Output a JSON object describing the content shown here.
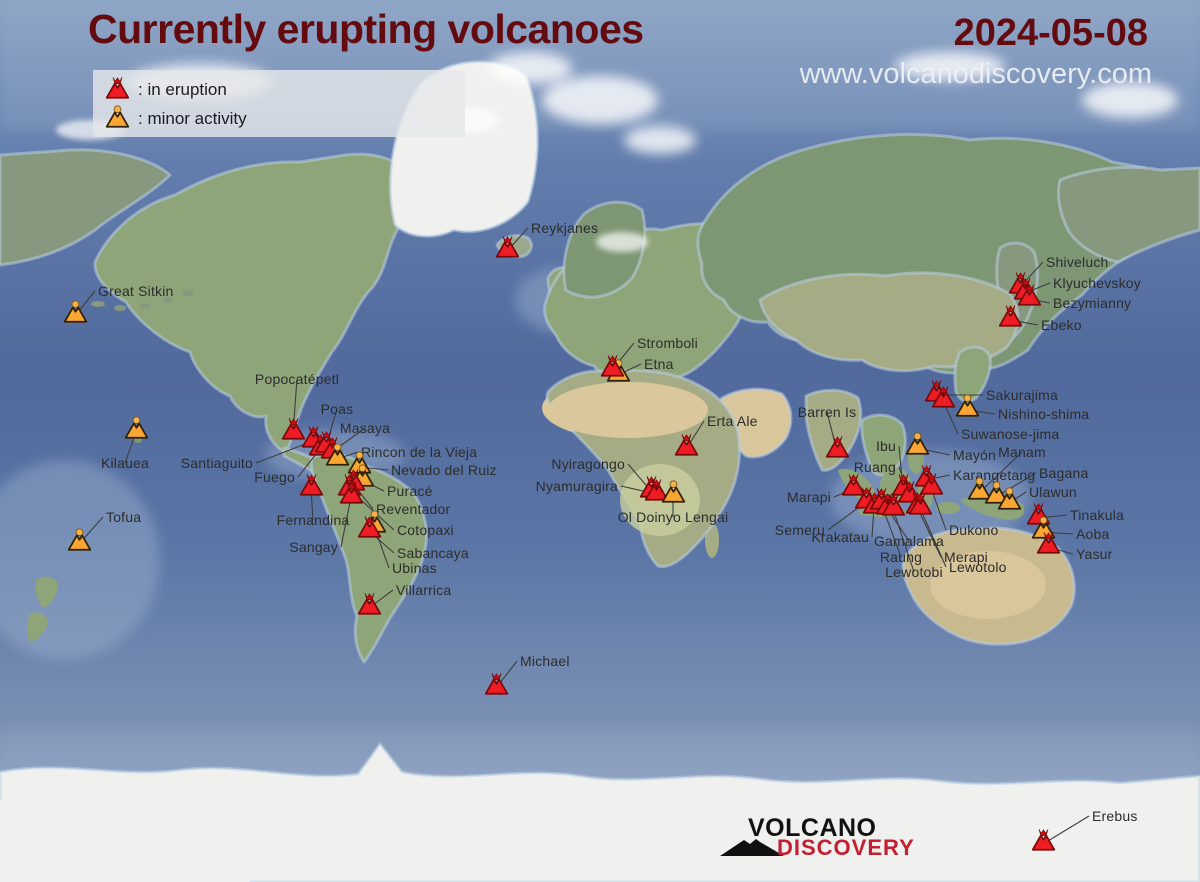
{
  "header": {
    "title": "Currently erupting volcanoes",
    "date": "2024-05-08",
    "website": "www.volcanodiscovery.com"
  },
  "legend": {
    "items": [
      {
        "type": "eruption",
        "label": ": in eruption"
      },
      {
        "type": "minor",
        "label": ": minor activity"
      }
    ]
  },
  "logo": {
    "line1": "VOLCANO",
    "line2": "DISCOVERY"
  },
  "colors": {
    "title": "#640b10",
    "eruption_fill": "#ee1c24",
    "eruption_outline": "#7a0808",
    "eruption_plume": "#c90d13",
    "minor_fill": "#f9a632",
    "minor_outline": "#2e2000",
    "minor_plume": "#f9b14c",
    "label_text": "#2c2c2c",
    "leader_line": "#3d3d3d",
    "logo_red": "#c41e30"
  },
  "volcanoes": [
    {
      "name": "Great Sitkin",
      "type": "minor",
      "marker": [
        75,
        316
      ],
      "label": [
        95,
        291
      ],
      "anchor": "start"
    },
    {
      "name": "Kilauea",
      "type": "minor",
      "marker": [
        136,
        432
      ],
      "label": [
        125,
        463
      ],
      "anchor": "middle"
    },
    {
      "name": "Tofua",
      "type": "minor",
      "marker": [
        79,
        544
      ],
      "label": [
        103,
        517
      ],
      "anchor": "start"
    },
    {
      "name": "Popocatépetl",
      "type": "eruption",
      "marker": [
        293,
        433
      ],
      "label": [
        297,
        379
      ],
      "anchor": "middle"
    },
    {
      "name": "Santiaguito",
      "type": "eruption",
      "marker": [
        313,
        441
      ],
      "label": [
        256,
        463
      ],
      "anchor": "end"
    },
    {
      "name": "Fuego",
      "type": "eruption",
      "marker": [
        320,
        449
      ],
      "label": [
        298,
        477
      ],
      "anchor": "end"
    },
    {
      "name": "Poas",
      "type": "eruption",
      "marker": [
        326,
        446
      ],
      "label": [
        337,
        409
      ],
      "anchor": "middle"
    },
    {
      "name": "Masaya",
      "type": "eruption",
      "marker": [
        332,
        452
      ],
      "label": [
        365,
        428
      ],
      "anchor": "middle"
    },
    {
      "name": "Rincon de la Vieja",
      "type": "minor",
      "marker": [
        337,
        459
      ],
      "label": [
        358,
        452
      ],
      "anchor": "start"
    },
    {
      "name": "Nevado del Ruiz",
      "type": "minor",
      "marker": [
        359,
        467
      ],
      "label": [
        388,
        470
      ],
      "anchor": "start"
    },
    {
      "name": "Puracé",
      "type": "minor",
      "marker": [
        362,
        480
      ],
      "label": [
        384,
        491
      ],
      "anchor": "start"
    },
    {
      "name": "Fernandina",
      "type": "eruption",
      "marker": [
        311,
        489
      ],
      "label": [
        313,
        520
      ],
      "anchor": "middle"
    },
    {
      "name": "Reventador",
      "type": "eruption",
      "marker": [
        353,
        484
      ],
      "label": [
        373,
        509
      ],
      "anchor": "start"
    },
    {
      "name": "Cotopaxi",
      "type": "eruption",
      "marker": [
        349,
        489
      ],
      "label": [
        394,
        530
      ],
      "anchor": "start"
    },
    {
      "name": "Sangay",
      "type": "eruption",
      "marker": [
        351,
        497
      ],
      "label": [
        341,
        547
      ],
      "anchor": "end"
    },
    {
      "name": "Ubinas",
      "type": "minor",
      "marker": [
        374,
        526
      ],
      "label": [
        389,
        568
      ],
      "anchor": "start"
    },
    {
      "name": "Sabancaya",
      "type": "eruption",
      "marker": [
        369,
        531
      ],
      "label": [
        394,
        553
      ],
      "anchor": "start"
    },
    {
      "name": "Villarrica",
      "type": "eruption",
      "marker": [
        369,
        608
      ],
      "label": [
        393,
        590
      ],
      "anchor": "start"
    },
    {
      "name": "Michael",
      "type": "eruption",
      "marker": [
        496,
        688
      ],
      "label": [
        517,
        661
      ],
      "anchor": "start"
    },
    {
      "name": "Reykjanes",
      "type": "eruption",
      "marker": [
        507,
        251
      ],
      "label": [
        528,
        228
      ],
      "anchor": "start"
    },
    {
      "name": "Etna",
      "type": "minor",
      "marker": [
        618,
        375
      ],
      "label": [
        641,
        364
      ],
      "anchor": "start"
    },
    {
      "name": "Stromboli",
      "type": "eruption",
      "marker": [
        612,
        370
      ],
      "label": [
        634,
        343
      ],
      "anchor": "start"
    },
    {
      "name": "Erta Ale",
      "type": "eruption",
      "marker": [
        686,
        449
      ],
      "label": [
        704,
        421
      ],
      "anchor": "start"
    },
    {
      "name": "Nyiragongo",
      "type": "eruption",
      "marker": [
        651,
        491
      ],
      "label": [
        628,
        464
      ],
      "anchor": "end"
    },
    {
      "name": "Nyamuragira",
      "type": "eruption",
      "marker": [
        656,
        494
      ],
      "label": [
        621,
        486
      ],
      "anchor": "end"
    },
    {
      "name": "Ol Doinyo Lengai",
      "type": "minor",
      "marker": [
        673,
        496
      ],
      "label": [
        673,
        517
      ],
      "anchor": "middle"
    },
    {
      "name": "Shiveluch",
      "type": "eruption",
      "marker": [
        1020,
        287
      ],
      "label": [
        1043,
        262
      ],
      "anchor": "start"
    },
    {
      "name": "Klyuchevskoy",
      "type": "eruption",
      "marker": [
        1025,
        293
      ],
      "label": [
        1050,
        283
      ],
      "anchor": "start"
    },
    {
      "name": "Bezymianny",
      "type": "eruption",
      "marker": [
        1029,
        299
      ],
      "label": [
        1050,
        303
      ],
      "anchor": "start"
    },
    {
      "name": "Ebeko",
      "type": "eruption",
      "marker": [
        1010,
        320
      ],
      "label": [
        1038,
        325
      ],
      "anchor": "start"
    },
    {
      "name": "Sakurajima",
      "type": "eruption",
      "marker": [
        936,
        395
      ],
      "label": [
        983,
        395
      ],
      "anchor": "start"
    },
    {
      "name": "Suwanose-jima",
      "type": "eruption",
      "marker": [
        943,
        401
      ],
      "label": [
        958,
        434
      ],
      "anchor": "start"
    },
    {
      "name": "Nishino-shima",
      "type": "minor",
      "marker": [
        967,
        410
      ],
      "label": [
        995,
        414
      ],
      "anchor": "start"
    },
    {
      "name": "Barren Is",
      "type": "eruption",
      "marker": [
        837,
        451
      ],
      "label": [
        827,
        412
      ],
      "anchor": "middle"
    },
    {
      "name": "Mayón",
      "type": "minor",
      "marker": [
        917,
        448
      ],
      "label": [
        950,
        455
      ],
      "anchor": "start"
    },
    {
      "name": "Ibu",
      "type": "eruption",
      "marker": [
        903,
        489
      ],
      "label": [
        899,
        446
      ],
      "anchor": "end"
    },
    {
      "name": "Ruang",
      "type": "eruption",
      "marker": [
        909,
        496
      ],
      "label": [
        899,
        467
      ],
      "anchor": "end"
    },
    {
      "name": "Karangetang",
      "type": "eruption",
      "marker": [
        926,
        480
      ],
      "label": [
        950,
        475
      ],
      "anchor": "start"
    },
    {
      "name": "Dukono",
      "type": "eruption",
      "marker": [
        931,
        488
      ],
      "label": [
        946,
        530
      ],
      "anchor": "start"
    },
    {
      "name": "Manam",
      "type": "minor",
      "marker": [
        979,
        493
      ],
      "label": [
        1022,
        452
      ],
      "anchor": "middle"
    },
    {
      "name": "Bagana",
      "type": "minor",
      "marker": [
        996,
        497
      ],
      "label": [
        1036,
        473
      ],
      "anchor": "start"
    },
    {
      "name": "Ulawun",
      "type": "minor",
      "marker": [
        1009,
        503
      ],
      "label": [
        1026,
        492
      ],
      "anchor": "start"
    },
    {
      "name": "Marapi",
      "type": "eruption",
      "marker": [
        853,
        489
      ],
      "label": [
        834,
        497
      ],
      "anchor": "end"
    },
    {
      "name": "Semeru",
      "type": "eruption",
      "marker": [
        866,
        502
      ],
      "label": [
        828,
        530
      ],
      "anchor": "end"
    },
    {
      "name": "Krakatau",
      "type": "eruption",
      "marker": [
        874,
        507
      ],
      "label": [
        872,
        537
      ],
      "anchor": "end"
    },
    {
      "name": "Raung",
      "type": "eruption",
      "marker": [
        881,
        503
      ],
      "label": [
        901,
        557
      ],
      "anchor": "middle"
    },
    {
      "name": "Gamalama",
      "type": "eruption",
      "marker": [
        887,
        508
      ],
      "label": [
        909,
        541
      ],
      "anchor": "middle"
    },
    {
      "name": "Lewotobi",
      "type": "eruption",
      "marker": [
        893,
        509
      ],
      "label": [
        914,
        572
      ],
      "anchor": "middle"
    },
    {
      "name": "Merapi",
      "type": "eruption",
      "marker": [
        917,
        507
      ],
      "label": [
        941,
        557
      ],
      "anchor": "start"
    },
    {
      "name": "Lewotolo",
      "type": "eruption",
      "marker": [
        920,
        508
      ],
      "label": [
        946,
        567
      ],
      "anchor": "start"
    },
    {
      "name": "Tinakula",
      "type": "eruption",
      "marker": [
        1038,
        518
      ],
      "label": [
        1067,
        515
      ],
      "anchor": "start"
    },
    {
      "name": "Aoba",
      "type": "minor",
      "marker": [
        1043,
        532
      ],
      "label": [
        1073,
        534
      ],
      "anchor": "start"
    },
    {
      "name": "Yasur",
      "type": "eruption",
      "marker": [
        1048,
        547
      ],
      "label": [
        1073,
        554
      ],
      "anchor": "start"
    },
    {
      "name": "Erebus",
      "type": "eruption",
      "marker": [
        1043,
        844
      ],
      "label": [
        1089,
        816
      ],
      "anchor": "start"
    }
  ]
}
